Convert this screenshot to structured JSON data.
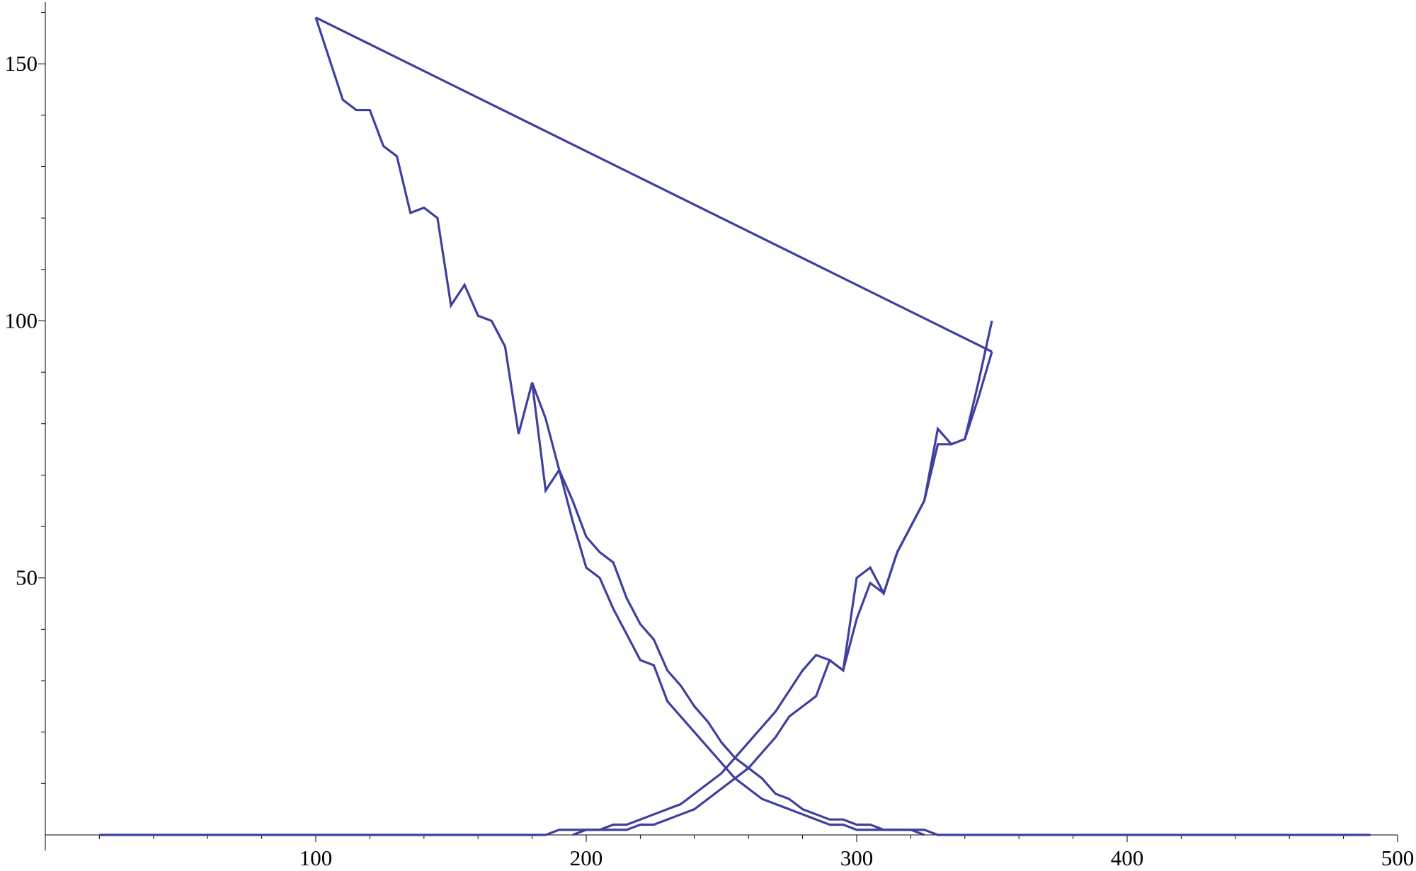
{
  "chart_data": {
    "type": "line",
    "title": "",
    "xlabel": "",
    "ylabel": "",
    "xlim": [
      0,
      500
    ],
    "ylim": [
      0,
      162
    ],
    "x_ticks": [
      100,
      200,
      300,
      400,
      500
    ],
    "y_ticks": [
      50,
      100,
      150
    ],
    "x_tick_labels": [
      "100",
      "200",
      "300",
      "400",
      "500"
    ],
    "y_tick_labels": [
      "50",
      "100",
      "150"
    ],
    "grid": false,
    "line_color": "#3f3f9f",
    "series": [
      {
        "points": [
          [
            100,
            159
          ],
          [
            110,
            143
          ],
          [
            115,
            141
          ],
          [
            120,
            141
          ],
          [
            125,
            134
          ],
          [
            130,
            132
          ],
          [
            135,
            121
          ],
          [
            140,
            122
          ],
          [
            145,
            120
          ],
          [
            150,
            103
          ],
          [
            155,
            107
          ],
          [
            160,
            101
          ],
          [
            165,
            100
          ],
          [
            170,
            95
          ],
          [
            175,
            78
          ],
          [
            180,
            88
          ],
          [
            185,
            67
          ],
          [
            190,
            71
          ],
          [
            195,
            65
          ],
          [
            200,
            58
          ],
          [
            205,
            55
          ],
          [
            210,
            53
          ],
          [
            215,
            46
          ],
          [
            220,
            41
          ],
          [
            225,
            38
          ],
          [
            230,
            32
          ],
          [
            235,
            29
          ],
          [
            240,
            25
          ],
          [
            245,
            22
          ],
          [
            250,
            18
          ],
          [
            255,
            15
          ],
          [
            260,
            13
          ],
          [
            265,
            11
          ],
          [
            270,
            8
          ],
          [
            275,
            7
          ],
          [
            280,
            5
          ],
          [
            285,
            4
          ],
          [
            290,
            3
          ],
          [
            295,
            3
          ],
          [
            300,
            2
          ],
          [
            305,
            2
          ],
          [
            310,
            1
          ],
          [
            315,
            1
          ],
          [
            320,
            1
          ],
          [
            325,
            1
          ],
          [
            330,
            0
          ],
          [
            335,
            0
          ],
          [
            340,
            0
          ],
          [
            345,
            0
          ],
          [
            350,
            0
          ],
          [
            400,
            0
          ],
          [
            450,
            0
          ],
          [
            490,
            0
          ]
        ]
      },
      {
        "points": [
          [
            20,
            0
          ],
          [
            100,
            0
          ],
          [
            150,
            0
          ],
          [
            185,
            0
          ],
          [
            190,
            1
          ],
          [
            195,
            1
          ],
          [
            200,
            1
          ],
          [
            205,
            1
          ],
          [
            210,
            2
          ],
          [
            215,
            2
          ],
          [
            220,
            3
          ],
          [
            225,
            4
          ],
          [
            230,
            5
          ],
          [
            235,
            6
          ],
          [
            240,
            8
          ],
          [
            245,
            10
          ],
          [
            250,
            12
          ],
          [
            255,
            15
          ],
          [
            260,
            18
          ],
          [
            265,
            21
          ],
          [
            270,
            24
          ],
          [
            275,
            28
          ],
          [
            280,
            32
          ],
          [
            285,
            35
          ],
          [
            290,
            34
          ],
          [
            295,
            32
          ],
          [
            300,
            50
          ],
          [
            305,
            52
          ],
          [
            310,
            47
          ],
          [
            315,
            55
          ],
          [
            320,
            60
          ],
          [
            325,
            65
          ],
          [
            330,
            79
          ],
          [
            335,
            76
          ],
          [
            340,
            77
          ],
          [
            345,
            88
          ],
          [
            350,
            100
          ]
        ]
      },
      {
        "points": [
          [
            350,
            94
          ],
          [
            100,
            159
          ]
        ]
      },
      {
        "points": [
          [
            180,
            88
          ],
          [
            185,
            81
          ],
          [
            190,
            71
          ],
          [
            195,
            61
          ],
          [
            200,
            52
          ],
          [
            205,
            50
          ],
          [
            210,
            44
          ],
          [
            215,
            39
          ],
          [
            220,
            34
          ],
          [
            225,
            33
          ],
          [
            230,
            26
          ],
          [
            235,
            23
          ],
          [
            240,
            20
          ],
          [
            245,
            17
          ],
          [
            250,
            14
          ],
          [
            255,
            11
          ],
          [
            260,
            9
          ],
          [
            265,
            7
          ],
          [
            270,
            6
          ],
          [
            275,
            5
          ],
          [
            280,
            4
          ],
          [
            285,
            3
          ],
          [
            290,
            2
          ],
          [
            295,
            2
          ],
          [
            300,
            1
          ],
          [
            305,
            1
          ],
          [
            310,
            1
          ],
          [
            315,
            1
          ],
          [
            320,
            1
          ],
          [
            325,
            0
          ]
        ]
      },
      {
        "points": [
          [
            195,
            0
          ],
          [
            200,
            1
          ],
          [
            205,
            1
          ],
          [
            210,
            1
          ],
          [
            215,
            1
          ],
          [
            220,
            2
          ],
          [
            225,
            2
          ],
          [
            230,
            3
          ],
          [
            235,
            4
          ],
          [
            240,
            5
          ],
          [
            245,
            7
          ],
          [
            250,
            9
          ],
          [
            255,
            11
          ],
          [
            260,
            13
          ],
          [
            265,
            16
          ],
          [
            270,
            19
          ],
          [
            275,
            23
          ],
          [
            280,
            25
          ],
          [
            285,
            27
          ],
          [
            290,
            34
          ],
          [
            295,
            32
          ],
          [
            300,
            42
          ],
          [
            305,
            49
          ],
          [
            310,
            47
          ],
          [
            315,
            55
          ],
          [
            320,
            60
          ],
          [
            325,
            65
          ],
          [
            330,
            76
          ],
          [
            335,
            76
          ],
          [
            340,
            77
          ],
          [
            345,
            85
          ],
          [
            350,
            94
          ]
        ]
      }
    ]
  }
}
